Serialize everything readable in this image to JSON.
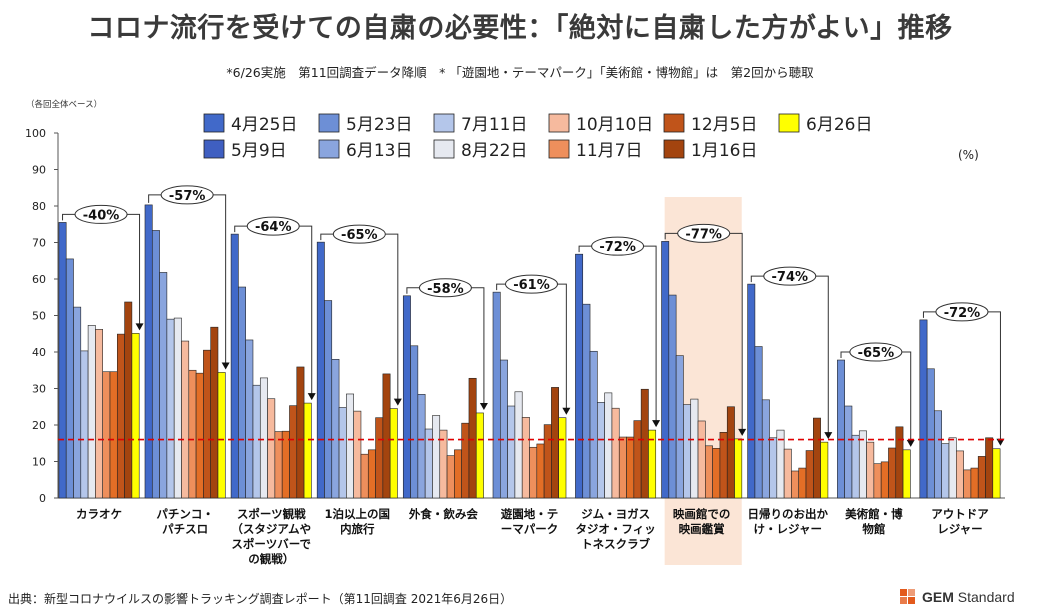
{
  "header": {
    "title": "コロナ流行を受けての自粛の必要性：「絶対に自粛した方がよい」推移",
    "subtitle": "*6/26実施　第11回調査データ降順　* 「遊園地・テーマパーク」「美術館・博物館」は　第2回から聴取",
    "unit_left": "（各回全体ベース）",
    "unit_right": "(%)"
  },
  "footer": {
    "source": "出典：新型コロナウイルスの影響トラッキング調査レポート（第11回調査 2021年6月26日）",
    "brand_bold": "GEM",
    "brand_rest": " Standard"
  },
  "colors": {
    "wave": [
      "#4169c9",
      "#3f5fc1",
      "#6d8fd6",
      "#8aa5de",
      "#b4c6ea",
      "#e6e9f0",
      "#f6ba9e",
      "#ee8f5c",
      "#e36e26",
      "#c0541a",
      "#a3440f",
      "#ffff00"
    ],
    "highlight_band": "#fbe5d6",
    "reference_line": "#e00000",
    "border": "#222222"
  },
  "chart_data": {
    "type": "bar",
    "ylim": [
      0,
      100
    ],
    "yticks": [
      0,
      10,
      20,
      30,
      40,
      50,
      60,
      70,
      80,
      90,
      100
    ],
    "reference_value": 16,
    "highlight_category": 7,
    "legend_rows": [
      [
        "4月25日",
        "5月23日",
        "7月11日",
        "10月10日",
        "12月5日",
        "6月26日"
      ],
      [
        "5月9日",
        "6月13日",
        "8月22日",
        "11月7日",
        "1月16日"
      ]
    ],
    "legend_color_index": [
      [
        0,
        2,
        4,
        6,
        9,
        11
      ],
      [
        1,
        3,
        5,
        7,
        10
      ]
    ],
    "series_names": [
      "4月25日",
      "5月9日",
      "5月23日",
      "6月13日",
      "7月11日",
      "8月22日",
      "10月10日",
      "11月7日",
      "12月5日",
      "1月16日",
      "6月26日"
    ],
    "categories": [
      [
        "カラオケ"
      ],
      [
        "パチンコ・",
        "パチスロ"
      ],
      [
        "スポーツ観戦",
        "（スタジアムや",
        "スポーツバーで",
        "の観戦）"
      ],
      [
        "1泊以上の国",
        "内旅行"
      ],
      [
        "外食・飲み会"
      ],
      [
        "遊園地・テ",
        "ーマパーク"
      ],
      [
        "ジム・ヨガス",
        "タジオ・フィッ",
        "トネスクラブ"
      ],
      [
        "映画館での",
        "映画鑑賞"
      ],
      [
        "日帰りのお出か",
        "け・レジャー"
      ],
      [
        "美術館・博",
        "物館"
      ],
      [
        "アウトドア",
        "レジャー"
      ]
    ],
    "change_labels": [
      "-40%",
      "-57%",
      "-64%",
      "-65%",
      "-58%",
      "-61%",
      "-72%",
      "-77%",
      "-74%",
      "-65%",
      "-72%"
    ],
    "values": [
      [
        75.5,
        65.5,
        52.3,
        40.3,
        47.3,
        46.2,
        34.6,
        34.6,
        44.9,
        53.7,
        45.1
      ],
      [
        80.3,
        73.3,
        61.8,
        49.0,
        49.3,
        43.0,
        35.0,
        34.2,
        40.5,
        46.8,
        34.4
      ],
      [
        72.3,
        57.8,
        43.3,
        30.9,
        32.9,
        27.2,
        18.2,
        18.3,
        25.3,
        35.9,
        26.0
      ],
      [
        70.1,
        54.1,
        38.0,
        24.8,
        28.5,
        23.8,
        12.0,
        13.2,
        22.0,
        34.0,
        24.5
      ],
      [
        55.4,
        41.7,
        28.4,
        18.9,
        22.6,
        18.6,
        11.6,
        13.2,
        20.5,
        32.8,
        23.3
      ],
      [
        56.4,
        37.8,
        25.2,
        29.1,
        22.1,
        13.9,
        14.8,
        20.1,
        30.3,
        22.0
      ],
      [
        66.8,
        53.1,
        40.2,
        26.2,
        28.8,
        24.6,
        16.7,
        16.7,
        21.2,
        29.8,
        18.6
      ],
      [
        70.3,
        55.6,
        39.0,
        25.6,
        27.1,
        21.1,
        14.3,
        13.6,
        18.0,
        25.0,
        16.2
      ],
      [
        58.6,
        41.5,
        26.9,
        16.5,
        18.6,
        13.4,
        7.4,
        8.2,
        13.0,
        21.9,
        15.3
      ],
      [
        37.8,
        25.2,
        17.2,
        18.4,
        15.3,
        9.4,
        9.9,
        13.7,
        19.5,
        13.2
      ],
      [
        48.8,
        35.4,
        23.9,
        14.9,
        16.5,
        12.9,
        7.7,
        8.2,
        11.4,
        16.5,
        13.5
      ]
    ]
  }
}
